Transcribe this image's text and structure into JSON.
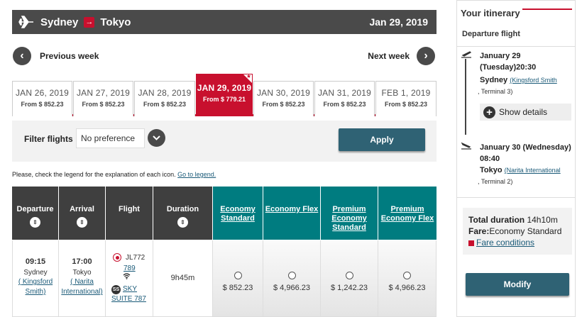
{
  "route": {
    "origin": "Sydney",
    "destination": "Tokyo",
    "date": "Jan 29, 2019"
  },
  "week_nav": {
    "previous": "Previous week",
    "next": "Next week"
  },
  "dates": [
    {
      "date": "JAN 26, 2019",
      "price": "From $ 852.23",
      "selected": false
    },
    {
      "date": "JAN 27, 2019",
      "price": "From $ 852.23",
      "selected": false
    },
    {
      "date": "JAN 28, 2019",
      "price": "From $ 852.23",
      "selected": false
    },
    {
      "date": "JAN 29, 2019",
      "price": "From $ 779.21",
      "selected": true
    },
    {
      "date": "JAN 30, 2019",
      "price": "From $ 852.23",
      "selected": false
    },
    {
      "date": "JAN 31, 2019",
      "price": "From $ 852.23",
      "selected": false
    },
    {
      "date": "FEB 1, 2019",
      "price": "From $ 852.23",
      "selected": false
    }
  ],
  "filter": {
    "label": "Filter flights",
    "value": "No preference",
    "apply": "Apply"
  },
  "legend": {
    "text": "Please, check the legend for the explanation of each icon.",
    "link": "Go to legend."
  },
  "table": {
    "headers": [
      "Departure",
      "Arrival",
      "Flight",
      "Duration"
    ],
    "fare_headers": [
      "Economy Standard",
      "Economy Flex",
      "Premium Economy Standard",
      "Premium Economy Flex"
    ],
    "row": {
      "dep_time": "09:15",
      "dep_city": "Sydney",
      "dep_airport": "( Kingsford Smith)",
      "arr_time": "17:00",
      "arr_city": "Tokyo",
      "arr_airport": "( Narita International)",
      "flight_code": "JL772",
      "flight_num": "789",
      "seat": "SKY SUITE 787",
      "duration": "9h45m",
      "fares": [
        "$ 852.23",
        "$ 4,966.23",
        "$ 1,242.23",
        "$ 4,966.23"
      ]
    }
  },
  "itinerary": {
    "title": "Your itinerary",
    "section": "Departure flight",
    "dep": {
      "date": "January 29 (Tuesday)20:30",
      "city": "Sydney",
      "airport": "(Kingsford Smith",
      "terminal": ", Terminal  3)"
    },
    "show_details": "Show details",
    "arr": {
      "date": "January 30 (Wednesday) 08:40",
      "city": "Tokyo",
      "airport": "(Narita International",
      "terminal": ", Terminal  2)"
    },
    "duration_label": "Total duration",
    "duration_value": "14h10m",
    "fare_label": "Fare:",
    "fare_value": "Economy Standard",
    "fare_conditions": "Fare conditions",
    "modify": "Modify"
  },
  "colors": {
    "brand_red": "#c8102e",
    "teal": "#007c80",
    "dark": "#4a4a4a",
    "button": "#2f6274"
  }
}
